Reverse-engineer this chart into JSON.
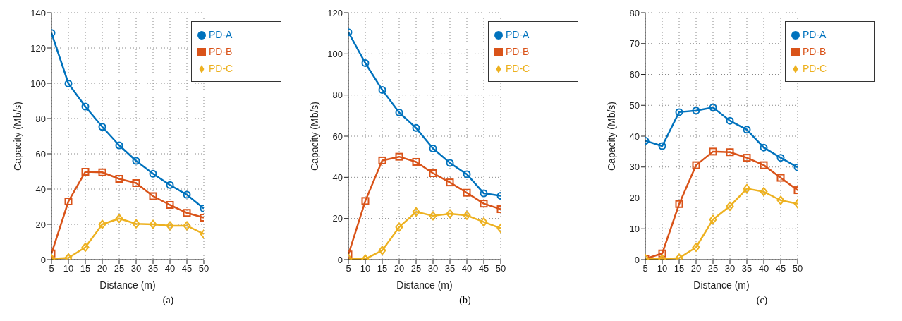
{
  "chart_data": [
    {
      "type": "line",
      "xlabel": "Distance (m)",
      "ylabel": "Capacity (Mb/s)",
      "annotations": [
        "(a)"
      ],
      "x": [
        5,
        10,
        15,
        20,
        25,
        30,
        35,
        40,
        45,
        50
      ],
      "xlim": [
        5,
        50
      ],
      "xticks": [
        5,
        10,
        15,
        20,
        25,
        30,
        35,
        40,
        45,
        50
      ],
      "ylim": [
        0,
        140
      ],
      "yticks": [
        0,
        20,
        40,
        60,
        80,
        100,
        120,
        140
      ],
      "grid": true,
      "legend": "top right",
      "series": [
        {
          "name": "PD-A",
          "color": "#0072bd",
          "marker": "circle",
          "values": [
            128.5,
            99.8,
            86.8,
            75.3,
            64.8,
            56,
            48.7,
            42.3,
            36.8,
            29
          ]
        },
        {
          "name": "PD-B",
          "color": "#d95319",
          "marker": "square",
          "values": [
            3.5,
            33,
            49.8,
            49.5,
            45.8,
            43.4,
            36,
            31,
            26.5,
            23.8
          ]
        },
        {
          "name": "PD-C",
          "color": "#edb120",
          "marker": "diamond",
          "values": [
            0.5,
            1,
            7,
            20,
            23.3,
            20.3,
            20,
            19.2,
            19.2,
            14.5
          ]
        }
      ]
    },
    {
      "type": "line",
      "xlabel": "Distance (m)",
      "ylabel": "Capacity (Mb/s)",
      "annotations": [
        "(b)"
      ],
      "x": [
        5,
        10,
        15,
        20,
        25,
        30,
        35,
        40,
        45,
        50
      ],
      "xlim": [
        5,
        50
      ],
      "xticks": [
        5,
        10,
        15,
        20,
        25,
        30,
        35,
        40,
        45,
        50
      ],
      "ylim": [
        0,
        120
      ],
      "yticks": [
        0,
        20,
        40,
        60,
        80,
        100,
        120
      ],
      "grid": true,
      "legend": "top right",
      "series": [
        {
          "name": "PD-A",
          "color": "#0072bd",
          "marker": "circle",
          "values": [
            110.5,
            95.5,
            82.5,
            71.5,
            64,
            54,
            47,
            41.5,
            32.2,
            31
          ]
        },
        {
          "name": "PD-B",
          "color": "#d95319",
          "marker": "square",
          "values": [
            2.5,
            28.5,
            48.2,
            50,
            47.5,
            42,
            37.5,
            32.5,
            27.2,
            24.5
          ]
        },
        {
          "name": "PD-C",
          "color": "#edb120",
          "marker": "diamond",
          "values": [
            0.5,
            0.3,
            4.5,
            15.8,
            23.2,
            21.3,
            22.3,
            21.5,
            18.3,
            15.2
          ]
        }
      ]
    },
    {
      "type": "line",
      "xlabel": "Distance (m)",
      "ylabel": "Capacity (Mb/s)",
      "annotations": [
        "(c)"
      ],
      "x": [
        5,
        10,
        15,
        20,
        25,
        30,
        35,
        40,
        45,
        50
      ],
      "xlim": [
        5,
        50
      ],
      "xticks": [
        5,
        10,
        15,
        20,
        25,
        30,
        35,
        40,
        45,
        50
      ],
      "ylim": [
        0,
        80
      ],
      "yticks": [
        0,
        10,
        20,
        30,
        40,
        50,
        60,
        70,
        80
      ],
      "grid": true,
      "legend": "top right",
      "series": [
        {
          "name": "PD-A",
          "color": "#0072bd",
          "marker": "circle",
          "values": [
            38.5,
            36.8,
            47.8,
            48.3,
            49.3,
            45,
            42.1,
            36.3,
            33,
            29.9
          ]
        },
        {
          "name": "PD-B",
          "color": "#d95319",
          "marker": "square",
          "values": [
            0.3,
            2,
            18,
            30.6,
            35,
            34.8,
            33,
            30.6,
            26.5,
            22.5
          ]
        },
        {
          "name": "PD-C",
          "color": "#edb120",
          "marker": "diamond",
          "values": [
            0.3,
            0.2,
            0.5,
            4,
            13,
            17.3,
            23,
            22,
            19.2,
            18.1
          ]
        }
      ]
    }
  ]
}
